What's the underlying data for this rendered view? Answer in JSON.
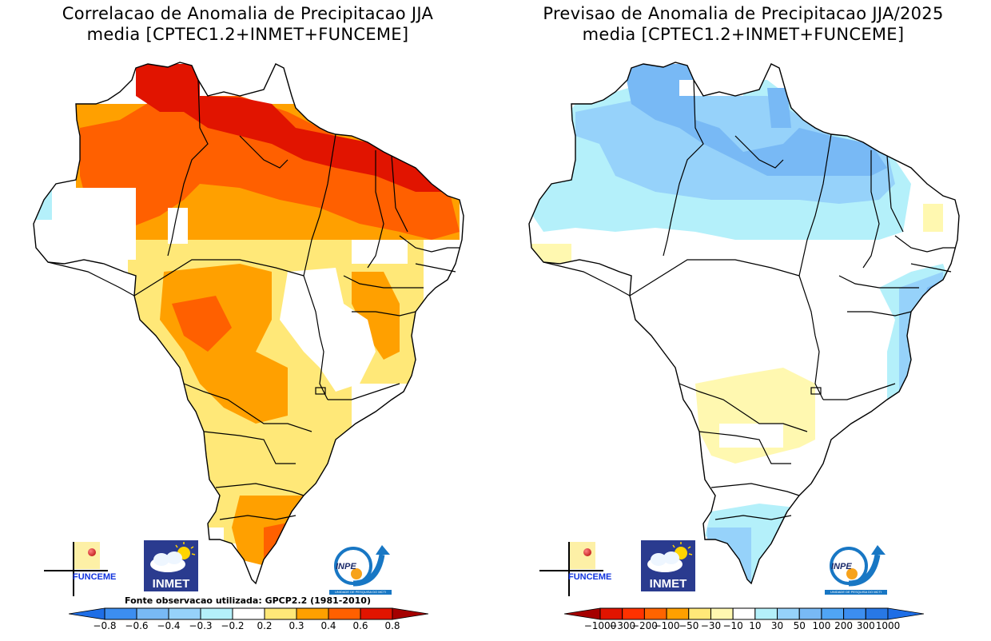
{
  "panels": [
    {
      "id": "correlation",
      "title_line1": "Correlacao de Anomalia de Precipitacao JJA",
      "title_line2": "media [CPTEC1.2+INMET+FUNCEME]",
      "source_note": "Fonte observacao utilizada: GPCP2.2 (1981-2010)",
      "colorbar": {
        "labels": [
          "-0.8",
          "-0.6",
          "-0.4",
          "-0.3",
          "-0.2",
          "0.2",
          "0.3",
          "0.4",
          "0.6",
          "0.8"
        ],
        "colors": [
          "#1e6ee6",
          "#3c8ef0",
          "#78b9f5",
          "#96d2fa",
          "#b4f0fa",
          "#ffffff",
          "#ffe878",
          "#ffa000",
          "#ff6000",
          "#e11400",
          "#a50000"
        ]
      }
    },
    {
      "id": "forecast",
      "title_line1": "Previsao de Anomalia de Precipitacao JJA/2025",
      "title_line2": "media [CPTEC1.2+INMET+FUNCEME]",
      "colorbar": {
        "labels": [
          "-1000",
          "-300",
          "-200",
          "-100",
          "-50",
          "-30",
          "-10",
          "10",
          "30",
          "50",
          "100",
          "200",
          "300",
          "1000"
        ],
        "colors": [
          "#a50000",
          "#e11400",
          "#ff3200",
          "#ff6400",
          "#ffa000",
          "#ffe878",
          "#fff8b0",
          "#ffffff",
          "#b4f0fa",
          "#96d2fa",
          "#78b9f5",
          "#50a5f5",
          "#3c8ef0",
          "#2878e6",
          "#1e6ee6"
        ]
      }
    }
  ],
  "logos": {
    "funceme": "FUNCEME",
    "inmet": "INMET",
    "inpe": "INPE",
    "inpe_sub": "UNIDADE DE PESQUISA DO MCTI"
  }
}
